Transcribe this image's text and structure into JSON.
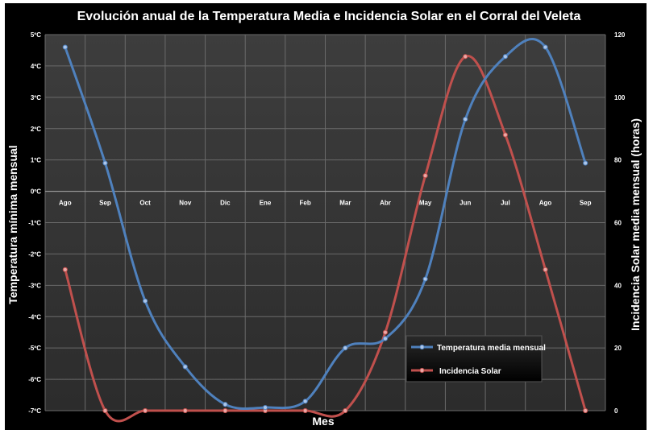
{
  "chart_data": {
    "type": "line",
    "title": "Evolución anual de la Temperatura Media e Incidencia Solar en el Corral del Veleta",
    "xlabel": "Mes",
    "ylabel_left": "Temperatura mínima mensual",
    "ylabel_right": "Incidencia Solar media mensual (horas)",
    "categories": [
      "Ago",
      "Sep",
      "Oct",
      "Nov",
      "Dic",
      "Ene",
      "Feb",
      "Mar",
      "Abr",
      "May",
      "Jun",
      "Jul",
      "Ago",
      "Sep"
    ],
    "y_left_range": [
      -7,
      5
    ],
    "y_left_ticks": [
      "5ºC",
      "4ºC",
      "3ºC",
      "2ºC",
      "1ºC",
      "0ºC",
      "-1ºC",
      "-2ºC",
      "-3ºC",
      "-4ºC",
      "-5ºC",
      "-6ºC",
      "-7ºC"
    ],
    "y_right_range": [
      0,
      120
    ],
    "y_right_ticks": [
      "120",
      "100",
      "80",
      "60",
      "40",
      "20",
      "0"
    ],
    "grid": true,
    "legend_position": "bottom-right",
    "series": [
      {
        "name": "Temperatura media mensual",
        "axis": "left",
        "color": "#4f81bd",
        "values": [
          4.6,
          0.9,
          -3.5,
          -5.6,
          -6.8,
          -6.9,
          -6.7,
          -5.0,
          -4.7,
          -2.8,
          2.3,
          4.3,
          4.6,
          0.9
        ]
      },
      {
        "name": "Incidencia Solar",
        "axis": "right",
        "color": "#c0504d",
        "values": [
          45,
          0,
          0,
          0,
          0,
          0,
          0,
          0,
          25,
          75,
          113,
          88,
          45,
          0
        ]
      }
    ]
  }
}
